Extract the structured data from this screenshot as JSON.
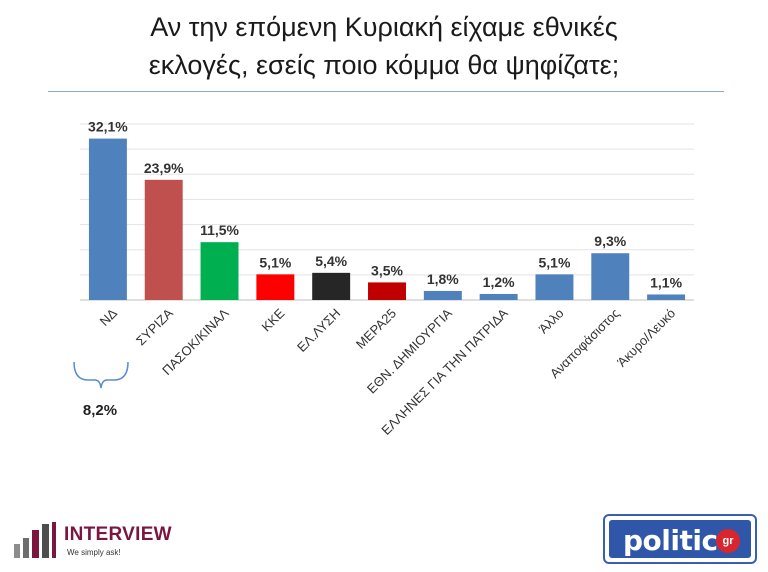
{
  "title_line1": "Αν την επόμενη Κυριακή είχαμε εθνικές",
  "title_line2": "εκλογές, εσείς ποιο κόμμα θα ψηφίζατε;",
  "chart_data": {
    "type": "bar",
    "categories": [
      "ΝΔ",
      "ΣΥΡΙΖΑ",
      "ΠΑΣΟΚ/ΚΙΝΑΛ",
      "ΚΚΕ",
      "ΕΛ.ΛΥΣΗ",
      "ΜΕΡΑ25",
      "ΕΘΝ. ΔΗΜΙΟΥΡΓΙΑ",
      "ΕΛΛΗΝΕΣ ΓΙΑ ΤΗΝ ΠΑΤΡΙΔΑ",
      "Άλλο",
      "Αναποφάσιστος",
      "Άκυρο/Λευκό"
    ],
    "values": [
      32.1,
      23.9,
      11.5,
      5.1,
      5.4,
      3.5,
      1.8,
      1.2,
      5.1,
      9.3,
      1.1
    ],
    "value_labels": [
      "32,1%",
      "23,9%",
      "11,5%",
      "5,1%",
      "5,4%",
      "3,5%",
      "1,8%",
      "1,2%",
      "5,1%",
      "9,3%",
      "1,1%"
    ],
    "colors": [
      "#4f81bd",
      "#c0504d",
      "#00b050",
      "#ff0000",
      "#262626",
      "#c00000",
      "#4f81bd",
      "#4f81bd",
      "#4f81bd",
      "#4f81bd",
      "#4f81bd"
    ],
    "ylim": [
      0,
      35
    ],
    "grid": true,
    "xlabel": "",
    "ylabel": ""
  },
  "annotation": {
    "gap_label": "8,2%"
  },
  "logos": {
    "left_name": "INTERVIEW",
    "left_tagline": "We simply ask!",
    "right_word": "politic",
    "right_suffix": "gr"
  }
}
